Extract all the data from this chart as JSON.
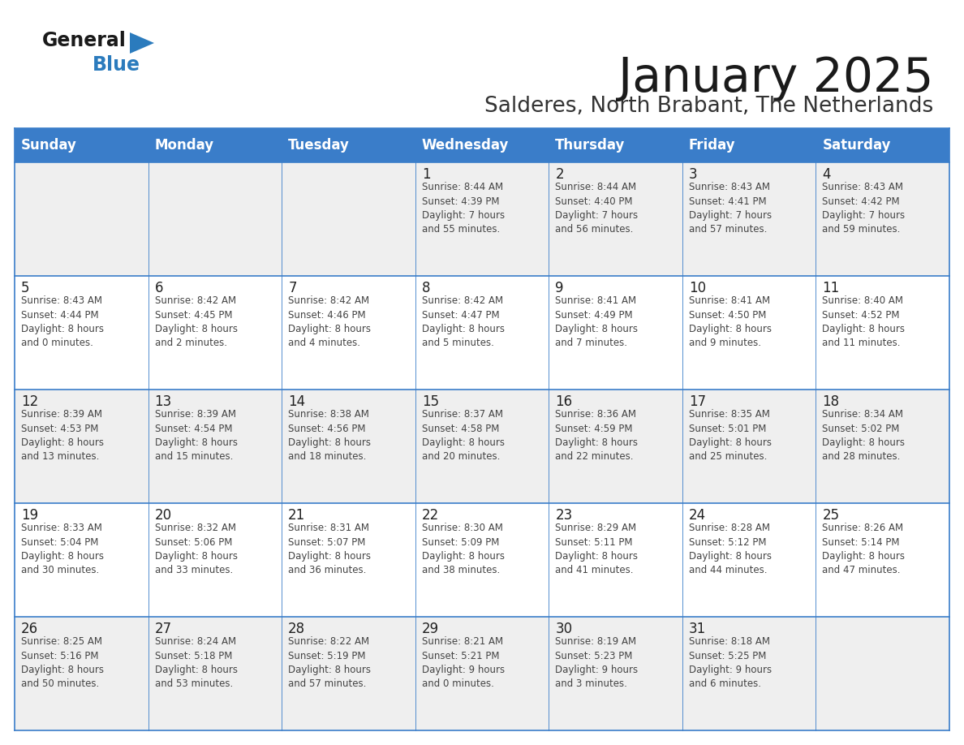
{
  "title": "January 2025",
  "subtitle": "Salderes, North Brabant, The Netherlands",
  "days_of_week": [
    "Sunday",
    "Monday",
    "Tuesday",
    "Wednesday",
    "Thursday",
    "Friday",
    "Saturday"
  ],
  "header_bg": "#3A7DC9",
  "header_text": "#FFFFFF",
  "row_bg_even": "#EFEFEF",
  "row_bg_odd": "#FFFFFF",
  "cell_text_color": "#444444",
  "day_num_color": "#222222",
  "grid_line_color": "#3A7DC9",
  "title_color": "#1A1A1A",
  "subtitle_color": "#333333",
  "logo_black": "#1A1A1A",
  "logo_blue": "#2B7BBD",
  "triangle_color": "#2B7BBD",
  "calendar_data": [
    [
      {
        "day": null,
        "info": ""
      },
      {
        "day": null,
        "info": ""
      },
      {
        "day": null,
        "info": ""
      },
      {
        "day": 1,
        "info": "Sunrise: 8:44 AM\nSunset: 4:39 PM\nDaylight: 7 hours\nand 55 minutes."
      },
      {
        "day": 2,
        "info": "Sunrise: 8:44 AM\nSunset: 4:40 PM\nDaylight: 7 hours\nand 56 minutes."
      },
      {
        "day": 3,
        "info": "Sunrise: 8:43 AM\nSunset: 4:41 PM\nDaylight: 7 hours\nand 57 minutes."
      },
      {
        "day": 4,
        "info": "Sunrise: 8:43 AM\nSunset: 4:42 PM\nDaylight: 7 hours\nand 59 minutes."
      }
    ],
    [
      {
        "day": 5,
        "info": "Sunrise: 8:43 AM\nSunset: 4:44 PM\nDaylight: 8 hours\nand 0 minutes."
      },
      {
        "day": 6,
        "info": "Sunrise: 8:42 AM\nSunset: 4:45 PM\nDaylight: 8 hours\nand 2 minutes."
      },
      {
        "day": 7,
        "info": "Sunrise: 8:42 AM\nSunset: 4:46 PM\nDaylight: 8 hours\nand 4 minutes."
      },
      {
        "day": 8,
        "info": "Sunrise: 8:42 AM\nSunset: 4:47 PM\nDaylight: 8 hours\nand 5 minutes."
      },
      {
        "day": 9,
        "info": "Sunrise: 8:41 AM\nSunset: 4:49 PM\nDaylight: 8 hours\nand 7 minutes."
      },
      {
        "day": 10,
        "info": "Sunrise: 8:41 AM\nSunset: 4:50 PM\nDaylight: 8 hours\nand 9 minutes."
      },
      {
        "day": 11,
        "info": "Sunrise: 8:40 AM\nSunset: 4:52 PM\nDaylight: 8 hours\nand 11 minutes."
      }
    ],
    [
      {
        "day": 12,
        "info": "Sunrise: 8:39 AM\nSunset: 4:53 PM\nDaylight: 8 hours\nand 13 minutes."
      },
      {
        "day": 13,
        "info": "Sunrise: 8:39 AM\nSunset: 4:54 PM\nDaylight: 8 hours\nand 15 minutes."
      },
      {
        "day": 14,
        "info": "Sunrise: 8:38 AM\nSunset: 4:56 PM\nDaylight: 8 hours\nand 18 minutes."
      },
      {
        "day": 15,
        "info": "Sunrise: 8:37 AM\nSunset: 4:58 PM\nDaylight: 8 hours\nand 20 minutes."
      },
      {
        "day": 16,
        "info": "Sunrise: 8:36 AM\nSunset: 4:59 PM\nDaylight: 8 hours\nand 22 minutes."
      },
      {
        "day": 17,
        "info": "Sunrise: 8:35 AM\nSunset: 5:01 PM\nDaylight: 8 hours\nand 25 minutes."
      },
      {
        "day": 18,
        "info": "Sunrise: 8:34 AM\nSunset: 5:02 PM\nDaylight: 8 hours\nand 28 minutes."
      }
    ],
    [
      {
        "day": 19,
        "info": "Sunrise: 8:33 AM\nSunset: 5:04 PM\nDaylight: 8 hours\nand 30 minutes."
      },
      {
        "day": 20,
        "info": "Sunrise: 8:32 AM\nSunset: 5:06 PM\nDaylight: 8 hours\nand 33 minutes."
      },
      {
        "day": 21,
        "info": "Sunrise: 8:31 AM\nSunset: 5:07 PM\nDaylight: 8 hours\nand 36 minutes."
      },
      {
        "day": 22,
        "info": "Sunrise: 8:30 AM\nSunset: 5:09 PM\nDaylight: 8 hours\nand 38 minutes."
      },
      {
        "day": 23,
        "info": "Sunrise: 8:29 AM\nSunset: 5:11 PM\nDaylight: 8 hours\nand 41 minutes."
      },
      {
        "day": 24,
        "info": "Sunrise: 8:28 AM\nSunset: 5:12 PM\nDaylight: 8 hours\nand 44 minutes."
      },
      {
        "day": 25,
        "info": "Sunrise: 8:26 AM\nSunset: 5:14 PM\nDaylight: 8 hours\nand 47 minutes."
      }
    ],
    [
      {
        "day": 26,
        "info": "Sunrise: 8:25 AM\nSunset: 5:16 PM\nDaylight: 8 hours\nand 50 minutes."
      },
      {
        "day": 27,
        "info": "Sunrise: 8:24 AM\nSunset: 5:18 PM\nDaylight: 8 hours\nand 53 minutes."
      },
      {
        "day": 28,
        "info": "Sunrise: 8:22 AM\nSunset: 5:19 PM\nDaylight: 8 hours\nand 57 minutes."
      },
      {
        "day": 29,
        "info": "Sunrise: 8:21 AM\nSunset: 5:21 PM\nDaylight: 9 hours\nand 0 minutes."
      },
      {
        "day": 30,
        "info": "Sunrise: 8:19 AM\nSunset: 5:23 PM\nDaylight: 9 hours\nand 3 minutes."
      },
      {
        "day": 31,
        "info": "Sunrise: 8:18 AM\nSunset: 5:25 PM\nDaylight: 9 hours\nand 6 minutes."
      },
      {
        "day": null,
        "info": ""
      }
    ]
  ]
}
